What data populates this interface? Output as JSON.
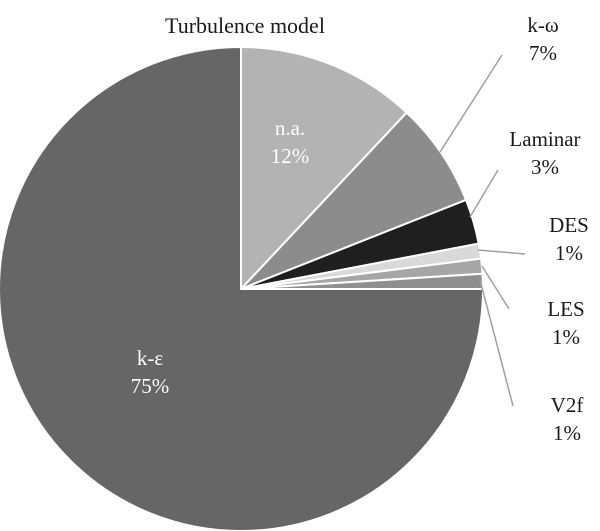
{
  "chart_data": {
    "type": "pie",
    "title": "Turbulence model",
    "slices": [
      {
        "name": "n.a.",
        "value": 12,
        "percent_label": "12%",
        "color": "#b3b3b3",
        "label_inside": true,
        "label_color": "#ffffff"
      },
      {
        "name": "k-ω",
        "value": 7,
        "percent_label": "7%",
        "color": "#8c8c8c",
        "label_inside": false,
        "label_color": "#1a1a1a"
      },
      {
        "name": "Laminar",
        "value": 3,
        "percent_label": "3%",
        "color": "#1f1f1f",
        "label_inside": false,
        "label_color": "#1a1a1a"
      },
      {
        "name": "DES",
        "value": 1,
        "percent_label": "1%",
        "color": "#d9d9d9",
        "label_inside": false,
        "label_color": "#1a1a1a"
      },
      {
        "name": "LES",
        "value": 1,
        "percent_label": "1%",
        "color": "#a6a6a6",
        "label_inside": false,
        "label_color": "#1a1a1a"
      },
      {
        "name": "V2f",
        "value": 1,
        "percent_label": "1%",
        "color": "#8f8f8f",
        "label_inside": false,
        "label_color": "#1a1a1a"
      },
      {
        "name": "k-ε",
        "value": 75,
        "percent_label": "75%",
        "color": "#666666",
        "label_inside": true,
        "label_color": "#ffffff"
      }
    ],
    "start_angle": "12 o'clock",
    "direction": "clockwise",
    "legend": "none",
    "leader_line_color": "#a0a0a0"
  }
}
